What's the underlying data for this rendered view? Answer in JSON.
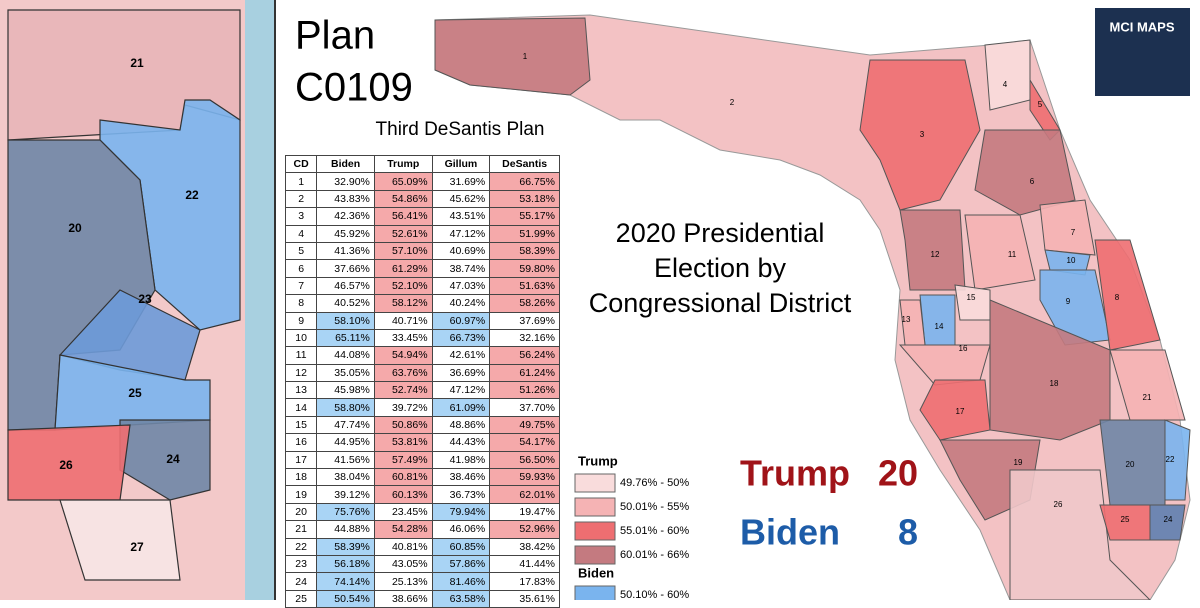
{
  "title_lines": [
    "Plan",
    "C0109"
  ],
  "subtitle": "Third DeSantis Plan",
  "logo": "MCI MAPS",
  "heading_lines": [
    "2020 Presidential",
    "Election by",
    "Congressional District"
  ],
  "table": {
    "columns": [
      "CD",
      "Biden",
      "Trump",
      "Gillum",
      "DeSantis"
    ],
    "rows": [
      [
        "1",
        "32.90%",
        "65.09%",
        "31.69%",
        "66.75%"
      ],
      [
        "2",
        "43.83%",
        "54.86%",
        "45.62%",
        "53.18%"
      ],
      [
        "3",
        "42.36%",
        "56.41%",
        "43.51%",
        "55.17%"
      ],
      [
        "4",
        "45.92%",
        "52.61%",
        "47.12%",
        "51.99%"
      ],
      [
        "5",
        "41.36%",
        "57.10%",
        "40.69%",
        "58.39%"
      ],
      [
        "6",
        "37.66%",
        "61.29%",
        "38.74%",
        "59.80%"
      ],
      [
        "7",
        "46.57%",
        "52.10%",
        "47.03%",
        "51.63%"
      ],
      [
        "8",
        "40.52%",
        "58.12%",
        "40.24%",
        "58.26%"
      ],
      [
        "9",
        "58.10%",
        "40.71%",
        "60.97%",
        "37.69%"
      ],
      [
        "10",
        "65.11%",
        "33.45%",
        "66.73%",
        "32.16%"
      ],
      [
        "11",
        "44.08%",
        "54.94%",
        "42.61%",
        "56.24%"
      ],
      [
        "12",
        "35.05%",
        "63.76%",
        "36.69%",
        "61.24%"
      ],
      [
        "13",
        "45.98%",
        "52.74%",
        "47.12%",
        "51.26%"
      ],
      [
        "14",
        "58.80%",
        "39.72%",
        "61.09%",
        "37.70%"
      ],
      [
        "15",
        "47.74%",
        "50.86%",
        "48.86%",
        "49.75%"
      ],
      [
        "16",
        "44.95%",
        "53.81%",
        "44.43%",
        "54.17%"
      ],
      [
        "17",
        "41.56%",
        "57.49%",
        "41.98%",
        "56.50%"
      ],
      [
        "18",
        "38.04%",
        "60.81%",
        "38.46%",
        "59.93%"
      ],
      [
        "19",
        "39.12%",
        "60.13%",
        "36.73%",
        "62.01%"
      ],
      [
        "20",
        "75.76%",
        "23.45%",
        "79.94%",
        "19.47%"
      ],
      [
        "21",
        "44.88%",
        "54.28%",
        "46.06%",
        "52.96%"
      ],
      [
        "22",
        "58.39%",
        "40.81%",
        "60.85%",
        "38.42%"
      ],
      [
        "23",
        "56.18%",
        "43.05%",
        "57.86%",
        "41.44%"
      ],
      [
        "24",
        "74.14%",
        "25.13%",
        "81.46%",
        "17.83%"
      ],
      [
        "25",
        "50.54%",
        "38.66%",
        "63.58%",
        "35.61%"
      ]
    ]
  },
  "legend": [
    {
      "title": "Trump",
      "items": [
        {
          "label": "49.76% - 50%",
          "color": "#f9dcdc"
        },
        {
          "label": "50.01% - 55%",
          "color": "#f5b3b4"
        },
        {
          "label": "55.01% - 60%",
          "color": "#ee6e71"
        },
        {
          "label": "60.01% - 66%",
          "color": "#c47a80"
        }
      ]
    },
    {
      "title": "Biden",
      "items": [
        {
          "label": "50.10% - 60%",
          "color": "#7ab4ee"
        }
      ]
    }
  ],
  "totals": [
    {
      "party": "Trump",
      "seats": 20,
      "color": "#a01318"
    },
    {
      "party": "Biden",
      "seats": 8,
      "color": "#1d5ca8"
    }
  ],
  "main_map_labels": [
    "1",
    "2",
    "3",
    "4",
    "5",
    "6",
    "7",
    "8",
    "9",
    "10",
    "11",
    "12",
    "13",
    "14",
    "15",
    "16",
    "17",
    "18",
    "19",
    "20",
    "21",
    "22",
    "24",
    "25",
    "26"
  ],
  "inset_map_labels": [
    "21",
    "22",
    "20",
    "23",
    "25",
    "24",
    "26",
    "27"
  ]
}
